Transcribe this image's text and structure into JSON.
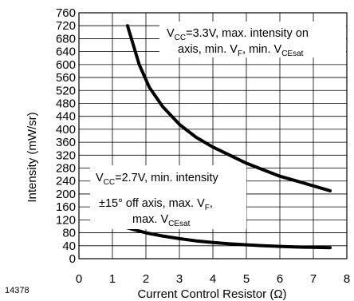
{
  "figure_id": "14378",
  "chart_data": {
    "type": "line",
    "xlabel": "Current Control Resistor (",
    "xlabel_unit": "Ω",
    "xlabel_close": ")",
    "ylabel": "Intensity (mW/sr)",
    "xlim": [
      0,
      8
    ],
    "ylim": [
      0,
      760
    ],
    "x_ticks": [
      "0",
      "1",
      "2",
      "3",
      "4",
      "5",
      "6",
      "7",
      "8"
    ],
    "y_ticks": [
      "0",
      "40",
      "80",
      "120",
      "160",
      "200",
      "240",
      "280",
      "320",
      "360",
      "400",
      "440",
      "480",
      "520",
      "560",
      "600",
      "640",
      "680",
      "720",
      "760"
    ],
    "grid": true,
    "series": [
      {
        "x": [
          1.45,
          1.8,
          2.1,
          2.5,
          3.0,
          3.5,
          4.0,
          4.5,
          5.0,
          5.5,
          6.0,
          6.5,
          7.0,
          7.5
        ],
        "y": [
          720,
          600,
          530,
          470,
          415,
          375,
          345,
          320,
          295,
          275,
          255,
          240,
          225,
          210
        ]
      },
      {
        "x": [
          1.45,
          2.0,
          2.5,
          3.0,
          3.5,
          4.0,
          4.5,
          5.0,
          5.5,
          6.0,
          6.5,
          7.0,
          7.5
        ],
        "y": [
          95,
          80,
          70,
          62,
          55,
          50,
          46,
          43,
          40,
          38,
          36,
          35,
          34
        ]
      }
    ],
    "annotations": [
      {
        "line1_pre": "V",
        "line1_sub": "CC",
        "line1_post": "=3.3V, max. intensity on",
        "line2_pre": "axis, min. V",
        "line2_sub1": "F",
        "line2_mid": ", min. V",
        "line2_sub2": "CEsat"
      },
      {
        "line1_pre": "V",
        "line1_sub": "CC",
        "line1_post": "=2.7V, min. intensity",
        "line2_pre": "±15° off axis, max. V",
        "line2_sub1": "F",
        "line2_post": ",",
        "line3_pre": "max. V",
        "line3_sub": "CEsat"
      }
    ]
  }
}
